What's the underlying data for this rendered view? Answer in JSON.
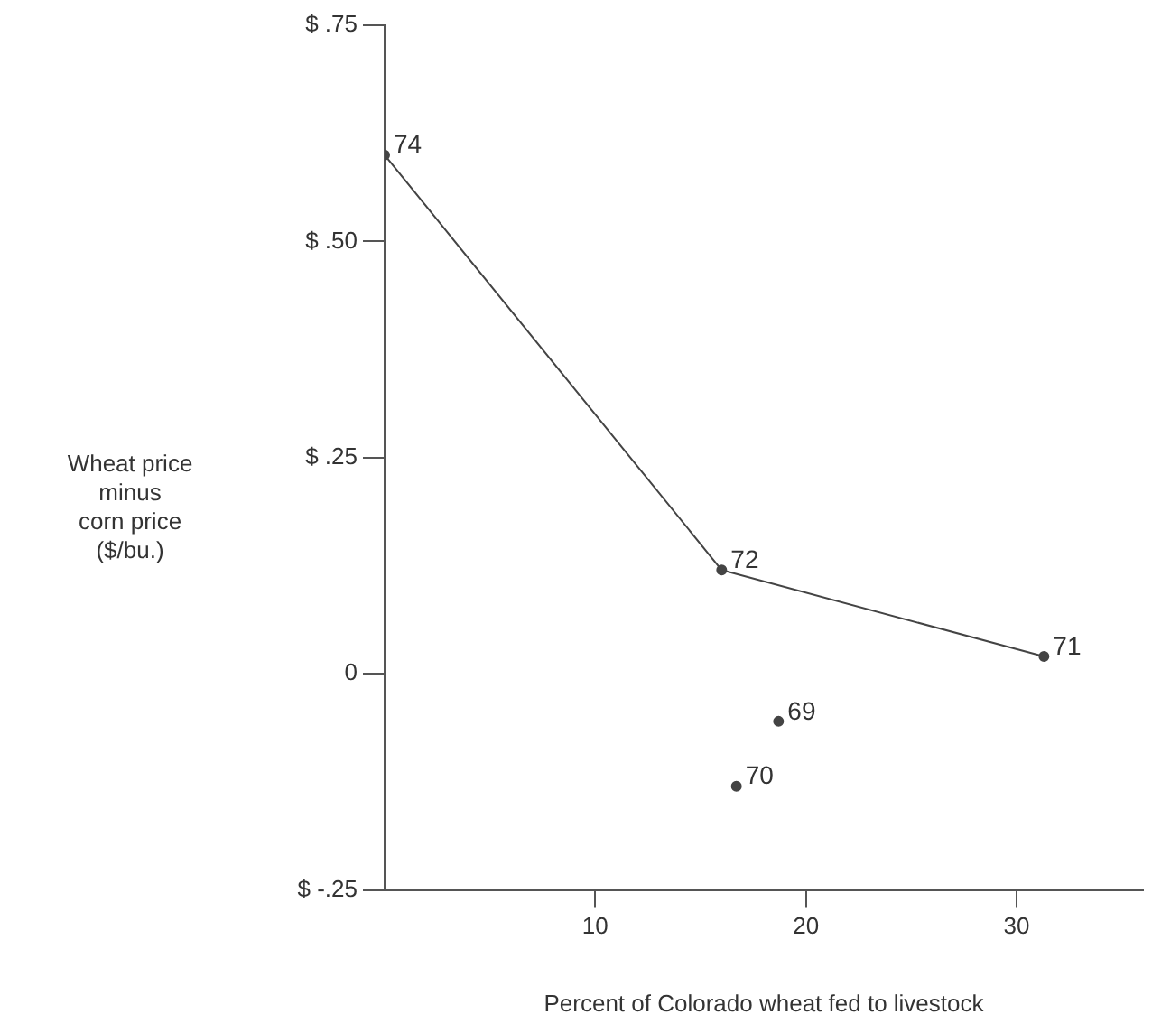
{
  "chart_data": {
    "type": "line",
    "xlabel": "Percent of Colorado wheat fed to livestock",
    "ylabel": "Wheat price\nminus\ncorn price\n($/bu.)",
    "xlim": [
      0,
      36
    ],
    "xticks": [
      10,
      20,
      30
    ],
    "ylim": [
      -0.25,
      0.75
    ],
    "yticks": [
      {
        "value": -0.25,
        "label": "$ -.25"
      },
      {
        "value": 0,
        "label": "0"
      },
      {
        "value": 0.25,
        "label": "$ .25"
      },
      {
        "value": 0.5,
        "label": "$ .50"
      },
      {
        "value": 0.75,
        "label": "$ .75"
      }
    ],
    "grid": false,
    "legend": false,
    "marker": "circle",
    "line_style": "solid",
    "series": [
      {
        "color": "#444444",
        "x": [
          0,
          16,
          31.3
        ],
        "values": [
          0.6,
          0.12,
          0.02
        ]
      },
      {
        "type": "scatter",
        "color": "#444444",
        "x": [
          18.7,
          16.7
        ],
        "values": [
          -0.055,
          -0.13
        ]
      }
    ],
    "annotations": [
      {
        "text": "74",
        "x": 0,
        "y": 0.6
      },
      {
        "text": "72",
        "x": 16,
        "y": 0.12
      },
      {
        "text": "71",
        "x": 31.3,
        "y": 0.02
      },
      {
        "text": "69",
        "x": 18.7,
        "y": -0.055
      },
      {
        "text": "70",
        "x": 16.7,
        "y": -0.13
      }
    ]
  }
}
